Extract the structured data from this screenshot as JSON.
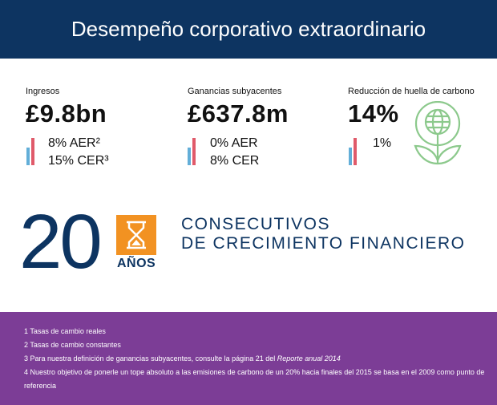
{
  "header": {
    "title": "Desempeño corporativo extraordinario"
  },
  "metrics": [
    {
      "label": "Ingresos",
      "value": "£9.8bn",
      "line1": "8% AER²",
      "line2": "15% CER³"
    },
    {
      "label": "Ganancias subyacentes",
      "value": "£637.8m",
      "line1": "0% AER",
      "line2": "8% CER"
    },
    {
      "label": "Reducción de huella de carbono",
      "value": "14%",
      "line1": "1%"
    }
  ],
  "milestone": {
    "number": "20",
    "unit": "AÑOS",
    "line1": "CONSECUTIVOS",
    "line2": "DE CRECIMIENTO FINANCIERO"
  },
  "footnotes": {
    "f1": "1 Tasas de cambio reales",
    "f2": "2 Tasas de cambio constantes",
    "f3_pre": "3 Para nuestra definición de ganancias subyacentes, consulte la página 21 del ",
    "f3_em": "Reporte anual 2014",
    "f4": "4 Nuestro objetivo de ponerle un tope absoluto a las emisiones de carbono de un 20% hacia finales del 2015 se basa en el 2009 como punto de referencia"
  },
  "colors": {
    "header": "#0d3461",
    "footer": "#7c3d96",
    "accent_orange": "#f29222",
    "bar_blue": "#62aed8",
    "bar_red": "#e05a6a",
    "icon_green": "#8cc98c"
  },
  "icons": [
    "bar-chart-icon",
    "globe-plant-icon",
    "hourglass-icon"
  ]
}
